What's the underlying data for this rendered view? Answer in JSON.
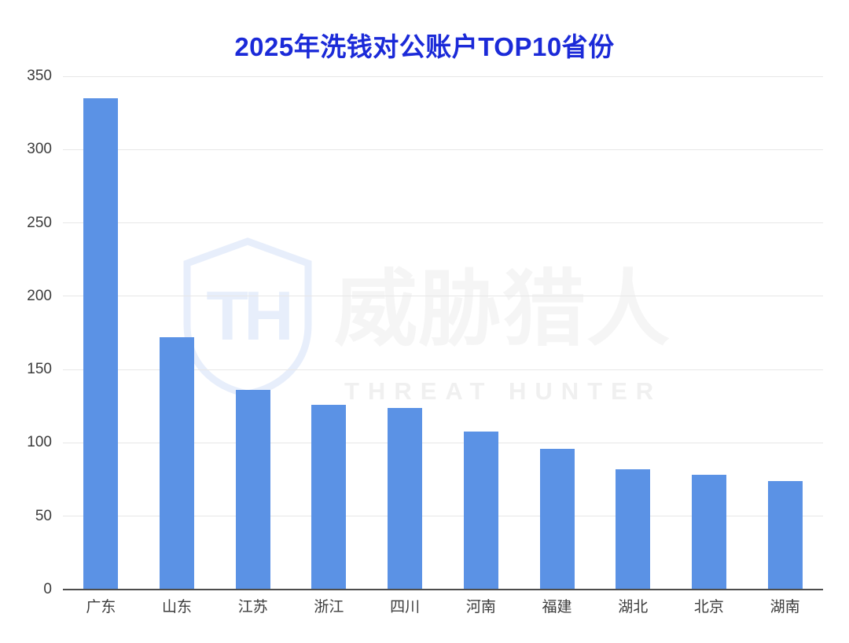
{
  "page": {
    "background": "#ffffff"
  },
  "watermark": {
    "cn": "威胁猎人",
    "en": "THREAT HUNTER",
    "monogram": "TH"
  },
  "chart_data": {
    "type": "bar",
    "title": "2025年洗钱对公账户TOP10省份",
    "categories": [
      "广东",
      "山东",
      "江苏",
      "浙江",
      "四川",
      "河南",
      "福建",
      "湖北",
      "北京",
      "湖南"
    ],
    "values": [
      335,
      172,
      136,
      126,
      124,
      108,
      96,
      82,
      78,
      74
    ],
    "xlabel": "",
    "ylabel": "",
    "ylim": [
      0,
      350
    ],
    "ytick_step": 50,
    "yticks": [
      0,
      50,
      100,
      150,
      200,
      250,
      300,
      350
    ],
    "grid": true,
    "legend": false,
    "colors": {
      "bar": "#5b92e5",
      "title": "#1b2ad8",
      "gridline": "#e7e7e7",
      "axis_line": "#4d4d4d",
      "tick_label": "#3c3c3c",
      "watermark_cn": "#f5f5f5",
      "watermark_en": "#f0f0f0",
      "watermark_logo": "#e7eefb"
    }
  }
}
